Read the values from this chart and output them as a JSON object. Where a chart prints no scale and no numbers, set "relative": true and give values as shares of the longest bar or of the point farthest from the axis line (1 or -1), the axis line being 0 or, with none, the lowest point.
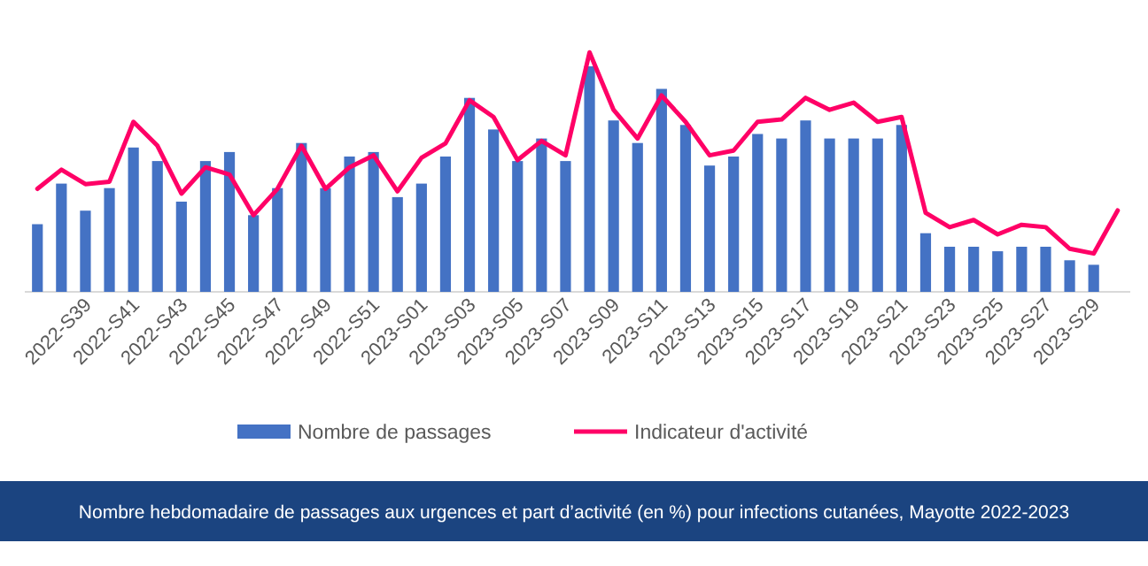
{
  "chart_data": {
    "type": "bar",
    "title": "Nombre hebdomadaire de passages aux urgences et part d’activité (en %) pour infections cutanées, Mayotte 2022-2023",
    "relative": true,
    "legend": "bottom",
    "categories": [
      null,
      null,
      "2022-S39",
      null,
      "2022-S41",
      null,
      "2022-S43",
      null,
      "2022-S45",
      null,
      "2022-S47",
      null,
      "2022-S49",
      null,
      "2022-S51",
      null,
      "2023-S01",
      null,
      "2023-S03",
      null,
      "2023-S05",
      null,
      "2023-S07",
      null,
      "2023-S09",
      null,
      "2023-S11",
      null,
      "2023-S13",
      null,
      "2023-S15",
      null,
      "2023-S17",
      null,
      "2023-S19",
      null,
      "2023-S21",
      null,
      "2023-S23",
      null,
      "2023-S25",
      null,
      "2023-S27",
      null,
      "2023-S29",
      null
    ],
    "series": [
      {
        "name": "Nombre de passages",
        "color": "#4472c4",
        "values": [
          0.3,
          0.48,
          0.36,
          0.46,
          0.64,
          0.58,
          0.4,
          0.58,
          0.62,
          0.34,
          0.46,
          0.66,
          0.46,
          0.6,
          0.62,
          0.42,
          0.48,
          0.6,
          0.86,
          0.72,
          0.58,
          0.68,
          0.58,
          1,
          0.76,
          0.66,
          0.9,
          0.74,
          0.56,
          0.6,
          0.7,
          0.68,
          0.76,
          0.68,
          0.68,
          0.68,
          0.74,
          0.26,
          0.2,
          0.2,
          0.18,
          0.2,
          0.2,
          0.14,
          0.12,
          null
        ]
      },
      {
        "name": "Indicateur d'activité",
        "type": "line",
        "axis": "y2",
        "color": "#ff0066",
        "values": [
          0.43,
          0.51,
          0.45,
          0.46,
          0.71,
          0.61,
          0.41,
          0.52,
          0.49,
          0.32,
          0.43,
          0.61,
          0.43,
          0.52,
          0.57,
          0.42,
          0.56,
          0.62,
          0.8,
          0.73,
          0.55,
          0.63,
          0.57,
          1,
          0.76,
          0.64,
          0.82,
          0.71,
          0.57,
          0.59,
          0.71,
          0.72,
          0.81,
          0.76,
          0.79,
          0.71,
          0.73,
          0.33,
          0.27,
          0.3,
          0.24,
          0.28,
          0.27,
          0.18,
          0.16,
          0.34
        ]
      }
    ]
  }
}
